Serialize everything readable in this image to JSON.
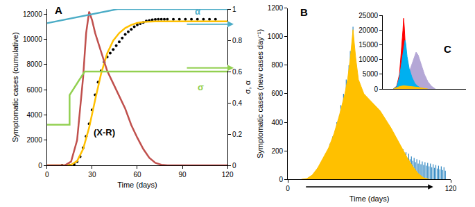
{
  "chart_data": [
    {
      "type": "line",
      "title": "A",
      "x_label": "Time (days)",
      "y_label": "Symptomatic cases (cumulative)",
      "y2_label": "σ, α",
      "xlim": [
        0,
        120
      ],
      "xticks": [
        0,
        30,
        60,
        90,
        120
      ],
      "ylim": [
        0,
        12400
      ],
      "yticks": [
        0,
        2000,
        4000,
        6000,
        8000,
        10000,
        12000
      ],
      "y2lim": [
        0,
        1
      ],
      "y2ticks": [
        0,
        0.2,
        0.4,
        0.6,
        0.8,
        1
      ],
      "grid": false,
      "series": [
        {
          "color": "#000000",
          "marker": "circle",
          "x": [
            10,
            15,
            18,
            20,
            22,
            24,
            26,
            28,
            30,
            32,
            34,
            36,
            38,
            40,
            42,
            44,
            46,
            48,
            50,
            52,
            54,
            56,
            58,
            60,
            62,
            64,
            66,
            68,
            70,
            72,
            74,
            76,
            78,
            80,
            84,
            88,
            92,
            96,
            100,
            104,
            108,
            112
          ],
          "values": [
            0,
            20,
            100,
            300,
            700,
            1400,
            2300,
            3300,
            4400,
            5600,
            6600,
            7500,
            8200,
            8600,
            8900,
            9200,
            9500,
            9800,
            10100,
            10400,
            10600,
            10800,
            11000,
            11150,
            11250,
            11350,
            11450,
            11500,
            11550,
            11580,
            11600,
            11600,
            11600,
            11600,
            11600,
            11600,
            11600,
            11600,
            11600,
            11600,
            11600,
            11600
          ]
        },
        {
          "color": "#ffc000",
          "x": [
            0,
            12,
            16,
            20,
            24,
            28,
            32,
            36,
            40,
            44,
            48,
            52,
            56,
            60,
            64,
            68,
            72,
            80,
            90,
            100,
            110,
            120
          ],
          "values": [
            0,
            0,
            50,
            350,
            1300,
            3000,
            5200,
            7300,
            8900,
            9900,
            10500,
            10900,
            11150,
            11300,
            11380,
            11420,
            11430,
            11430,
            11430,
            11430,
            11430,
            11430
          ]
        },
        {
          "name": "(X-R)",
          "color": "#c0504d",
          "x": [
            0,
            12,
            16,
            20,
            24,
            26,
            28,
            30,
            32,
            36,
            40,
            44,
            48,
            52,
            56,
            60,
            64,
            68,
            72,
            76,
            80,
            120
          ],
          "values": [
            0,
            20,
            300,
            2000,
            7000,
            10500,
            12200,
            11500,
            10500,
            9000,
            7500,
            6500,
            5500,
            4500,
            3200,
            2200,
            1300,
            600,
            200,
            50,
            0,
            0
          ]
        },
        {
          "name": "α",
          "color": "#4bacc6",
          "axis": "y2",
          "x": [
            0,
            47,
            120
          ],
          "values": [
            0.91,
            1,
            1
          ]
        },
        {
          "name": "σ",
          "color": "#92d050",
          "axis": "y2",
          "x": [
            0,
            15,
            15,
            25,
            120
          ],
          "values": [
            0.26,
            0.26,
            0.45,
            0.6,
            0.6
          ]
        }
      ]
    },
    {
      "type": "bar",
      "title": "B",
      "x_label": "Time (days)",
      "y_label": "Symptomatic cases (new cases day⁻¹)",
      "xlim": [
        0,
        120
      ],
      "xticks": [
        0,
        120
      ],
      "ylim": [
        0,
        1200
      ],
      "yticks": [
        0,
        200,
        400,
        600,
        800,
        1000,
        1200
      ],
      "grid": false,
      "series": [
        {
          "type": "area",
          "color": "#ffc000",
          "x": [
            10,
            14,
            18,
            22,
            26,
            30,
            34,
            38,
            42,
            44,
            46,
            48,
            50,
            52,
            54,
            56,
            60,
            64,
            68,
            72,
            76,
            80,
            84,
            88,
            92,
            96,
            100,
            104
          ],
          "values": [
            0,
            5,
            30,
            80,
            150,
            220,
            320,
            450,
            600,
            700,
            850,
            1050,
            850,
            700,
            650,
            600,
            560,
            520,
            480,
            420,
            360,
            290,
            220,
            150,
            90,
            40,
            10,
            0
          ]
        },
        {
          "type": "bar",
          "color": "#2e86c1",
          "x": [
            14,
            15,
            16,
            17,
            18,
            19,
            20,
            21,
            22,
            23,
            24,
            25,
            26,
            27,
            28,
            29,
            30,
            31,
            32,
            33,
            34,
            35,
            36,
            37,
            38,
            39,
            40,
            41,
            42,
            43,
            44,
            45,
            46,
            47,
            48,
            49,
            50,
            51,
            52,
            53,
            54,
            55,
            56,
            57,
            58,
            59,
            60,
            61,
            62,
            63,
            64,
            65,
            66,
            67,
            68,
            69,
            70,
            71,
            72,
            73,
            74,
            75,
            76,
            77,
            78,
            79,
            80,
            81,
            82,
            83,
            84,
            85,
            86,
            87,
            88,
            89,
            90,
            91,
            92,
            93,
            94,
            95,
            96,
            97,
            98,
            99,
            100,
            101,
            102,
            103,
            104,
            105,
            106,
            107,
            108,
            109,
            110,
            111,
            112,
            113,
            114,
            115,
            116
          ],
          "values": [
            5,
            10,
            15,
            20,
            30,
            40,
            50,
            60,
            80,
            70,
            100,
            120,
            110,
            150,
            180,
            160,
            220,
            250,
            230,
            300,
            280,
            350,
            400,
            380,
            450,
            520,
            480,
            600,
            550,
            700,
            650,
            800,
            900,
            850,
            1070,
            750,
            680,
            720,
            600,
            650,
            560,
            620,
            520,
            580,
            480,
            540,
            450,
            500,
            420,
            470,
            400,
            440,
            380,
            410,
            350,
            390,
            330,
            360,
            300,
            340,
            280,
            310,
            260,
            290,
            240,
            270,
            220,
            250,
            200,
            230,
            180,
            210,
            170,
            190,
            150,
            180,
            140,
            160,
            130,
            150,
            120,
            140,
            110,
            135,
            105,
            125,
            100,
            120,
            95,
            115,
            90,
            110,
            85,
            105,
            80,
            100,
            75,
            95,
            70,
            90,
            65,
            85,
            60
          ]
        }
      ]
    },
    {
      "type": "area",
      "title": "C",
      "xlim": [
        0,
        120
      ],
      "ylim": [
        0,
        25000
      ],
      "yticks": [
        0,
        5000,
        10000,
        15000,
        20000,
        25000
      ],
      "grid": false,
      "tick_labels": "y",
      "series": [
        {
          "color": "#b4a7d6",
          "x": [
            20,
            28,
            34,
            40,
            45,
            48,
            51,
            55,
            60,
            65,
            70,
            76
          ],
          "values": [
            0,
            1000,
            3000,
            7000,
            10500,
            12500,
            11500,
            8500,
            5000,
            2500,
            1000,
            0
          ]
        },
        {
          "color": "#ff0000",
          "x": [
            15,
            20,
            24,
            27,
            29,
            30,
            31,
            33,
            35,
            38,
            42,
            46
          ],
          "values": [
            0,
            1000,
            5000,
            13000,
            20000,
            24000,
            21000,
            12000,
            5000,
            1500,
            300,
            0
          ]
        },
        {
          "color": "#00b0f0",
          "x": [
            15,
            20,
            24,
            28,
            31,
            32,
            33,
            35,
            38,
            42,
            46,
            50,
            55,
            60
          ],
          "values": [
            0,
            800,
            4000,
            11000,
            15000,
            16500,
            15500,
            11000,
            7000,
            4000,
            2000,
            1000,
            300,
            0
          ]
        },
        {
          "color": "#ffc000",
          "x": [
            15,
            20,
            25,
            30,
            35,
            40,
            45,
            50,
            55,
            60,
            65
          ],
          "values": [
            0,
            400,
            900,
            1100,
            1000,
            900,
            800,
            600,
            400,
            200,
            0
          ]
        }
      ]
    }
  ]
}
